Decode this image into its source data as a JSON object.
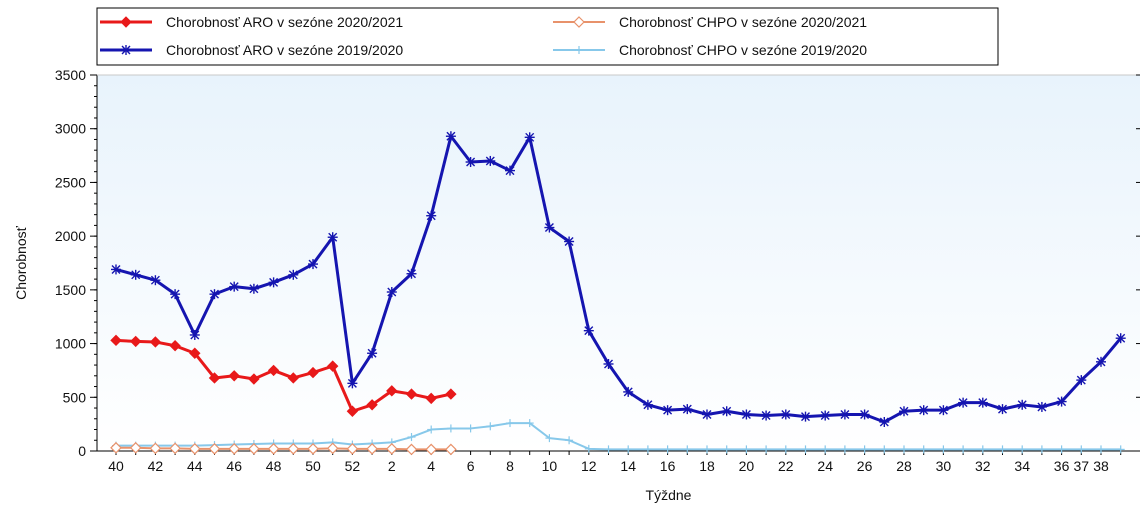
{
  "chart_data": {
    "type": "line",
    "xlabel": "Týždne",
    "ylabel": "Chorobnosť",
    "ylim": [
      0,
      3500
    ],
    "yticks": [
      0,
      500,
      1000,
      1500,
      2000,
      2500,
      3000,
      3500
    ],
    "grid": false,
    "legend_position": "top-left",
    "x": [
      "40",
      "41",
      "42",
      "43",
      "44",
      "45",
      "46",
      "47",
      "48",
      "49",
      "50",
      "51",
      "52",
      "1",
      "2",
      "3",
      "4",
      "5",
      "6",
      "7",
      "8",
      "9",
      "10",
      "11",
      "12",
      "13",
      "14",
      "15",
      "16",
      "17",
      "18",
      "19",
      "20",
      "21",
      "22",
      "23",
      "24",
      "25",
      "26",
      "27",
      "28",
      "29",
      "30",
      "31",
      "32",
      "33",
      "34",
      "35",
      "36",
      "37",
      "38",
      "39"
    ],
    "xtick_labels": [
      "40",
      "42",
      "44",
      "46",
      "48",
      "50",
      "52",
      "2",
      "4",
      "6",
      "8",
      "10",
      "12",
      "14",
      "16",
      "18",
      "20",
      "22",
      "24",
      "26",
      "28",
      "30",
      "32",
      "34",
      "36",
      "37",
      "38"
    ],
    "series": [
      {
        "name": "Chorobnosť ARO v sezóne 2020/2021",
        "color": "#e8191a",
        "marker": "diamond-filled",
        "values": [
          1030,
          1020,
          1015,
          980,
          910,
          680,
          700,
          670,
          750,
          680,
          730,
          790,
          370,
          430,
          560,
          530,
          490,
          530,
          null,
          null,
          null,
          null,
          null,
          null,
          null,
          null,
          null,
          null,
          null,
          null,
          null,
          null,
          null,
          null,
          null,
          null,
          null,
          null,
          null,
          null,
          null,
          null,
          null,
          null,
          null,
          null,
          null,
          null,
          null,
          null,
          null,
          null
        ]
      },
      {
        "name": "Chorobnosť CHPO v sezóne 2020/2021",
        "color": "#e8926b",
        "marker": "diamond-open",
        "values": [
          30,
          30,
          25,
          25,
          20,
          20,
          20,
          20,
          20,
          20,
          20,
          25,
          20,
          20,
          20,
          15,
          15,
          15,
          null,
          null,
          null,
          null,
          null,
          null,
          null,
          null,
          null,
          null,
          null,
          null,
          null,
          null,
          null,
          null,
          null,
          null,
          null,
          null,
          null,
          null,
          null,
          null,
          null,
          null,
          null,
          null,
          null,
          null,
          null,
          null,
          null,
          null
        ]
      },
      {
        "name": "Chorobnosť ARO v sezóne 2019/2020",
        "color": "#1515b0",
        "marker": "star",
        "values": [
          1690,
          1640,
          1590,
          1460,
          1080,
          1460,
          1530,
          1510,
          1570,
          1640,
          1740,
          1990,
          630,
          910,
          1480,
          1650,
          2190,
          2930,
          2690,
          2700,
          2610,
          2920,
          2080,
          1950,
          1120,
          810,
          550,
          430,
          380,
          390,
          340,
          370,
          340,
          330,
          340,
          320,
          330,
          340,
          340,
          270,
          370,
          380,
          380,
          450,
          450,
          390,
          430,
          410,
          460,
          660,
          830,
          1050
        ]
      },
      {
        "name": "Chorobnosť CHPO v sezóne 2019/2020",
        "color": "#87c8ea",
        "marker": "plus",
        "values": [
          50,
          50,
          50,
          50,
          50,
          55,
          60,
          65,
          70,
          70,
          70,
          80,
          60,
          70,
          80,
          130,
          200,
          210,
          210,
          230,
          260,
          260,
          120,
          100,
          20,
          15,
          15,
          15,
          15,
          15,
          15,
          15,
          15,
          15,
          15,
          15,
          15,
          15,
          15,
          15,
          15,
          15,
          15,
          15,
          15,
          15,
          15,
          15,
          15,
          15,
          15,
          15
        ]
      }
    ]
  }
}
